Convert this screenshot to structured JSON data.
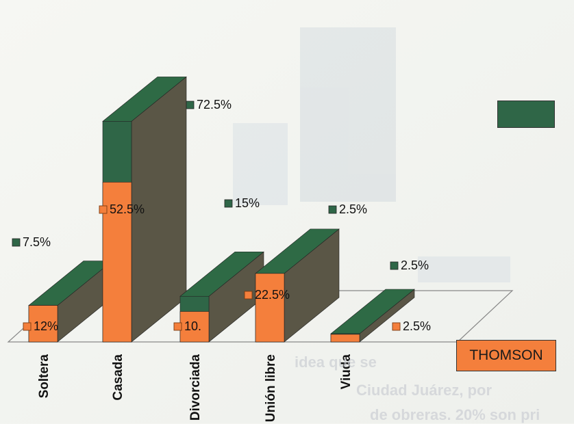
{
  "chart_data": {
    "type": "bar",
    "style": "3d-overlapping",
    "categories": [
      "Soltera",
      "Casada",
      "Divorciada",
      "Unión libre",
      "Viuda"
    ],
    "series": [
      {
        "name": "",
        "color": "#2f6647",
        "values": [
          7.5,
          72.5,
          15,
          2.5,
          2.5
        ],
        "labels": [
          "7.5%",
          "72.5%",
          "15%",
          "2.5%",
          "2.5%"
        ]
      },
      {
        "name": "THOMSON",
        "color": "#f47f3c",
        "values": [
          12,
          52.5,
          10,
          22.5,
          2.5
        ],
        "labels": [
          "12%",
          "52.5%",
          "10.",
          "22.5%",
          "2.5%"
        ]
      }
    ],
    "grid": false,
    "legend": "right"
  },
  "legend": {
    "green_color": "#2f6647",
    "orange_label": "THOMSON"
  },
  "caption_fragments": [
    "idea que se",
    "Ciudad Juárez, por",
    "de obreras. 20% son pri"
  ]
}
